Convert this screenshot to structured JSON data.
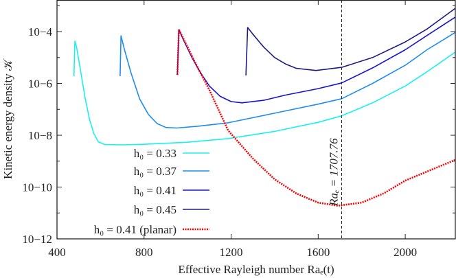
{
  "chart_data": {
    "type": "line",
    "title": "",
    "xlabel": "Effective Rayleigh number Raₑ(t)",
    "ylabel": "Kinetic energy density 𝒦",
    "xlim": [
      400,
      2230
    ],
    "ylim_log10": [
      -12,
      -2.78
    ],
    "yscale": "log",
    "grid": false,
    "legend_position": "bottom-left",
    "xticks": [
      400,
      800,
      1200,
      1600,
      2000
    ],
    "xtick_labels": [
      "400",
      "800",
      "1200",
      "1600",
      "2000"
    ],
    "yticks_log10": [
      -12,
      -10,
      -8,
      -6,
      -4
    ],
    "ytick_labels": [
      "10−12",
      "10−10",
      "10−8",
      "10−6",
      "10−4"
    ],
    "annotation": {
      "x": 1707.76,
      "label": "Raₑ = 1707.76",
      "style": "dashed vertical line",
      "color": "#222222"
    },
    "series": [
      {
        "name": "h₀ = 0.33",
        "color": "#19f0f0",
        "style": "solid",
        "points_log10": [
          [
            478,
            -5.72
          ],
          [
            482,
            -4.37
          ],
          [
            490,
            -4.6
          ],
          [
            510,
            -5.6
          ],
          [
            530,
            -6.6
          ],
          [
            550,
            -7.4
          ],
          [
            570,
            -7.95
          ],
          [
            590,
            -8.25
          ],
          [
            620,
            -8.36
          ],
          [
            700,
            -8.37
          ],
          [
            800,
            -8.35
          ],
          [
            1000,
            -8.27
          ],
          [
            1186,
            -8.13
          ],
          [
            1400,
            -7.85
          ],
          [
            1600,
            -7.5
          ],
          [
            1708,
            -7.25
          ],
          [
            1850,
            -6.75
          ],
          [
            2000,
            -6.1
          ],
          [
            2100,
            -5.55
          ],
          [
            2230,
            -4.79
          ]
        ]
      },
      {
        "name": "h₀ = 0.37",
        "color": "#1e8cf0",
        "style": "solid",
        "points_log10": [
          [
            690,
            -5.72
          ],
          [
            694,
            -4.16
          ],
          [
            710,
            -4.7
          ],
          [
            740,
            -5.6
          ],
          [
            780,
            -6.6
          ],
          [
            820,
            -7.2
          ],
          [
            860,
            -7.55
          ],
          [
            900,
            -7.7
          ],
          [
            950,
            -7.72
          ],
          [
            1050,
            -7.65
          ],
          [
            1186,
            -7.52
          ],
          [
            1400,
            -7.15
          ],
          [
            1600,
            -6.8
          ],
          [
            1708,
            -6.59
          ],
          [
            1850,
            -6.0
          ],
          [
            2000,
            -5.3
          ],
          [
            2100,
            -4.7
          ],
          [
            2230,
            -4.03
          ]
        ]
      },
      {
        "name": "h₀ = 0.41",
        "color": "#1414d2",
        "style": "solid",
        "points_log10": [
          [
            953,
            -5.67
          ],
          [
            960,
            -3.92
          ],
          [
            980,
            -4.3
          ],
          [
            1020,
            -5.0
          ],
          [
            1060,
            -5.6
          ],
          [
            1100,
            -6.1
          ],
          [
            1150,
            -6.5
          ],
          [
            1200,
            -6.7
          ],
          [
            1250,
            -6.75
          ],
          [
            1350,
            -6.65
          ],
          [
            1450,
            -6.45
          ],
          [
            1600,
            -6.2
          ],
          [
            1708,
            -5.98
          ],
          [
            1850,
            -5.4
          ],
          [
            2000,
            -4.7
          ],
          [
            2100,
            -4.15
          ],
          [
            2230,
            -3.44
          ]
        ]
      },
      {
        "name": "h₀ = 0.45",
        "color": "#1c1c84",
        "style": "solid",
        "points_log10": [
          [
            1268,
            -5.69
          ],
          [
            1276,
            -3.84
          ],
          [
            1300,
            -4.1
          ],
          [
            1350,
            -4.6
          ],
          [
            1400,
            -5.0
          ],
          [
            1450,
            -5.25
          ],
          [
            1500,
            -5.42
          ],
          [
            1590,
            -5.5
          ],
          [
            1708,
            -5.38
          ],
          [
            1850,
            -5.0
          ],
          [
            2000,
            -4.4
          ],
          [
            2100,
            -3.9
          ],
          [
            2230,
            -3.1
          ]
        ]
      },
      {
        "name": "h₀ = 0.41 (planar)",
        "color": "#ff0000",
        "style": "dotted",
        "points_log10": [
          [
            953,
            -5.67
          ],
          [
            960,
            -3.92
          ],
          [
            1000,
            -4.6
          ],
          [
            1050,
            -5.45
          ],
          [
            1100,
            -6.25
          ],
          [
            1186,
            -7.81
          ],
          [
            1300,
            -8.9
          ],
          [
            1400,
            -9.7
          ],
          [
            1500,
            -10.25
          ],
          [
            1600,
            -10.6
          ],
          [
            1690,
            -10.72
          ],
          [
            1800,
            -10.6
          ],
          [
            1900,
            -10.25
          ],
          [
            2000,
            -9.75
          ],
          [
            2100,
            -9.4
          ],
          [
            2230,
            -8.95
          ]
        ]
      }
    ]
  }
}
